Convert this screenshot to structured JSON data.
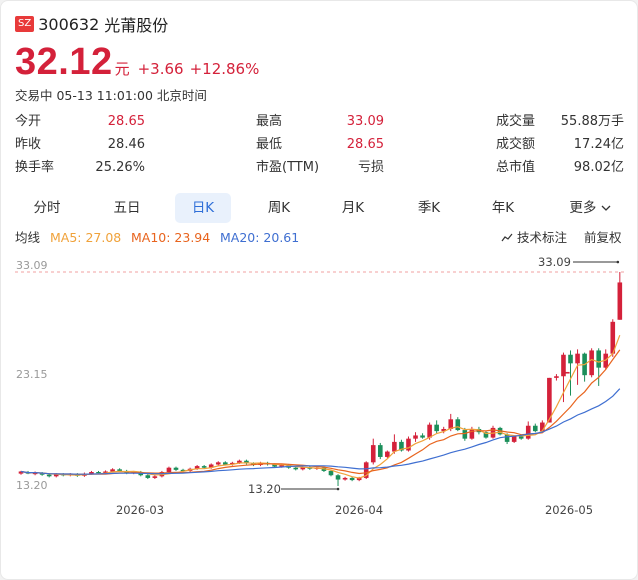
{
  "header": {
    "exchange_badge": "SZ",
    "code": "300632",
    "name": "光莆股份"
  },
  "price": {
    "last": "32.12",
    "unit": "元",
    "change": "+3.66",
    "change_pct": "+12.86%"
  },
  "status_line": "交易中 05-13 11:01:00 北京时间",
  "stats": [
    {
      "label": "今开",
      "value": "28.65",
      "color": "red"
    },
    {
      "label": "最高",
      "value": "33.09",
      "color": "red"
    },
    {
      "label": "成交量",
      "value": "55.88万手",
      "color": "dark"
    },
    {
      "label": "昨收",
      "value": "28.46",
      "color": "dark"
    },
    {
      "label": "最低",
      "value": "28.65",
      "color": "red"
    },
    {
      "label": "成交额",
      "value": "17.24亿",
      "color": "dark"
    },
    {
      "label": "换手率",
      "value": "25.26%",
      "color": "dark"
    },
    {
      "label": "市盈(TTM)",
      "value": "亏损",
      "color": "dark"
    },
    {
      "label": "总市值",
      "value": "98.02亿",
      "color": "dark"
    }
  ],
  "tabs": [
    "分时",
    "五日",
    "日K",
    "周K",
    "月K",
    "季K",
    "年K",
    "更多"
  ],
  "active_tab": "日K",
  "ma": {
    "label": "均线",
    "ma5": "MA5: 27.08",
    "ma10": "MA10: 23.94",
    "ma20": "MA20: 20.61"
  },
  "tools": {
    "indicator": "技术标注",
    "adjust": "前复权"
  },
  "colors": {
    "up": "#d4213a",
    "down": "#1b8f5a",
    "ma5": "#f0a23a",
    "ma10": "#e8641e",
    "ma20": "#3f6fd1",
    "active_tab_text": "#2f6fd8"
  },
  "chart_data": {
    "type": "candlestick",
    "y_ticks": [
      "33.09",
      "23.15",
      "13.20"
    ],
    "x_ticks": [
      "2026-03",
      "2026-04",
      "2026-05"
    ],
    "ylim": [
      13.2,
      33.09
    ],
    "max_label": "33.09",
    "min_label": "13.20",
    "candles": [
      [
        14.35,
        14.55,
        14.25,
        14.6
      ],
      [
        14.5,
        14.35,
        14.3,
        14.6
      ],
      [
        14.3,
        14.45,
        14.2,
        14.55
      ],
      [
        14.4,
        14.25,
        14.15,
        14.5
      ],
      [
        14.25,
        14.1,
        14.0,
        14.35
      ],
      [
        14.1,
        14.3,
        14.0,
        14.4
      ],
      [
        14.3,
        14.2,
        14.1,
        14.4
      ],
      [
        14.2,
        14.3,
        14.1,
        14.4
      ],
      [
        14.3,
        14.15,
        14.05,
        14.4
      ],
      [
        14.15,
        14.35,
        14.05,
        14.45
      ],
      [
        14.35,
        14.5,
        14.25,
        14.6
      ],
      [
        14.5,
        14.4,
        14.3,
        14.6
      ],
      [
        14.4,
        14.55,
        14.3,
        14.65
      ],
      [
        14.55,
        14.75,
        14.45,
        14.85
      ],
      [
        14.75,
        14.6,
        14.5,
        14.85
      ],
      [
        14.6,
        14.4,
        14.3,
        14.7
      ],
      [
        14.4,
        14.5,
        14.3,
        14.6
      ],
      [
        14.5,
        14.2,
        14.1,
        14.6
      ],
      [
        14.2,
        13.95,
        13.85,
        14.3
      ],
      [
        13.95,
        14.1,
        13.85,
        14.2
      ],
      [
        14.1,
        14.5,
        14.0,
        14.6
      ],
      [
        14.5,
        14.9,
        14.4,
        15.0
      ],
      [
        14.9,
        14.7,
        14.6,
        15.0
      ],
      [
        14.7,
        14.6,
        14.5,
        14.8
      ],
      [
        14.6,
        14.8,
        14.5,
        14.9
      ],
      [
        14.8,
        15.05,
        14.7,
        15.15
      ],
      [
        15.05,
        14.9,
        14.8,
        15.15
      ],
      [
        14.9,
        15.2,
        14.8,
        15.3
      ],
      [
        15.2,
        15.4,
        15.1,
        15.5
      ],
      [
        15.4,
        15.2,
        15.1,
        15.5
      ],
      [
        15.2,
        15.35,
        15.1,
        15.45
      ],
      [
        15.35,
        15.55,
        15.25,
        15.65
      ],
      [
        15.55,
        15.3,
        15.2,
        15.65
      ],
      [
        15.3,
        15.15,
        15.05,
        15.4
      ],
      [
        15.15,
        15.35,
        15.05,
        15.45
      ],
      [
        15.35,
        15.2,
        15.1,
        15.45
      ],
      [
        15.2,
        15.0,
        14.9,
        15.3
      ],
      [
        15.0,
        15.15,
        14.9,
        15.25
      ],
      [
        15.15,
        14.9,
        14.8,
        15.25
      ],
      [
        14.9,
        14.75,
        14.65,
        15.0
      ],
      [
        14.75,
        14.95,
        14.65,
        15.05
      ],
      [
        14.95,
        14.8,
        14.7,
        15.05
      ],
      [
        14.8,
        14.9,
        14.7,
        15.0
      ],
      [
        14.9,
        14.6,
        14.5,
        15.0
      ],
      [
        14.6,
        14.2,
        14.1,
        14.7
      ],
      [
        14.2,
        13.8,
        13.2,
        14.3
      ],
      [
        13.8,
        13.95,
        13.7,
        14.05
      ],
      [
        13.95,
        13.75,
        13.65,
        14.05
      ],
      [
        13.75,
        13.95,
        13.65,
        14.05
      ],
      [
        13.95,
        15.4,
        13.85,
        15.5
      ],
      [
        15.4,
        17.0,
        15.2,
        17.6
      ],
      [
        17.0,
        15.9,
        15.7,
        17.2
      ],
      [
        15.9,
        16.4,
        15.8,
        16.5
      ],
      [
        16.4,
        17.3,
        16.2,
        18.0
      ],
      [
        17.3,
        16.5,
        16.4,
        17.5
      ],
      [
        16.5,
        17.6,
        16.4,
        17.8
      ],
      [
        17.6,
        17.9,
        17.3,
        18.2
      ],
      [
        17.9,
        17.7,
        17.6,
        18.1
      ],
      [
        17.7,
        18.9,
        17.5,
        19.1
      ],
      [
        18.9,
        18.3,
        18.1,
        19.3
      ],
      [
        18.3,
        18.5,
        18.1,
        18.7
      ],
      [
        18.5,
        19.4,
        18.3,
        19.9
      ],
      [
        19.4,
        18.4,
        18.3,
        19.6
      ],
      [
        18.4,
        17.6,
        17.4,
        18.6
      ],
      [
        17.6,
        18.5,
        17.5,
        18.7
      ],
      [
        18.5,
        18.2,
        18.0,
        18.7
      ],
      [
        18.2,
        17.7,
        17.6,
        18.3
      ],
      [
        17.7,
        18.6,
        17.6,
        18.8
      ],
      [
        18.6,
        18.0,
        17.9,
        18.7
      ],
      [
        18.0,
        17.3,
        17.1,
        18.1
      ],
      [
        17.3,
        17.8,
        17.2,
        17.9
      ],
      [
        17.8,
        17.6,
        17.5,
        17.9
      ],
      [
        17.6,
        18.8,
        17.5,
        19.2
      ],
      [
        18.8,
        18.3,
        18.2,
        19.0
      ],
      [
        18.3,
        19.1,
        18.2,
        19.3
      ],
      [
        19.1,
        23.25,
        19.1,
        23.25
      ],
      [
        23.25,
        23.4,
        23.0,
        23.6
      ],
      [
        23.4,
        25.4,
        21.0,
        25.6
      ],
      [
        25.4,
        24.6,
        21.6,
        25.8
      ],
      [
        24.6,
        25.5,
        22.6,
        25.9
      ],
      [
        25.5,
        23.5,
        22.9,
        25.6
      ],
      [
        23.5,
        25.8,
        23.3,
        26.0
      ],
      [
        25.8,
        24.2,
        22.5,
        26.0
      ],
      [
        24.2,
        25.5,
        24.0,
        25.9
      ],
      [
        25.5,
        28.46,
        25.2,
        28.7
      ],
      [
        28.65,
        32.12,
        28.65,
        33.09
      ]
    ],
    "isolated_candles": [
      [
        23.8,
        23.8,
        23.8,
        23.8
      ]
    ]
  }
}
